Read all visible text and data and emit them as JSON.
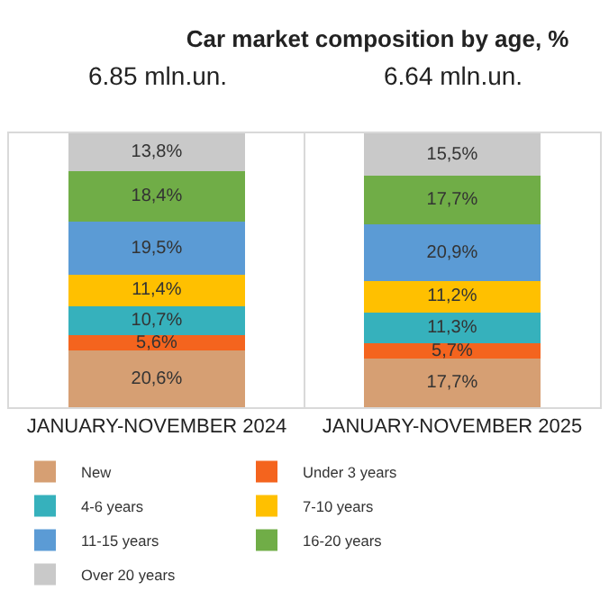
{
  "chart_data": {
    "type": "bar",
    "title": "Car market composition by age, %",
    "categories": [
      "JANUARY-NOVEMBER 2024",
      "JANUARY-NOVEMBER 2025"
    ],
    "stacked": true,
    "legend": "bottom",
    "grid": false,
    "annotations": [
      {
        "text": "6.85 mln.un.",
        "x": "JANUARY-NOVEMBER 2024",
        "y": 100
      },
      {
        "text": "6.64 mln.un.",
        "x": "JANUARY-NOVEMBER 2025",
        "y": 100
      }
    ],
    "series": [
      {
        "name": "New",
        "color": "#d69f73",
        "values": [
          20.6,
          17.7
        ],
        "value_labels": [
          "20,6%",
          "17,7%"
        ]
      },
      {
        "name": "Under 3 years",
        "color": "#f4641e",
        "values": [
          5.6,
          5.7
        ],
        "value_labels": [
          "5,6%",
          "5,7%"
        ]
      },
      {
        "name": "4-6 years",
        "color": "#36b1bc",
        "values": [
          10.7,
          11.3
        ],
        "value_labels": [
          "10,7%",
          "11,3%"
        ]
      },
      {
        "name": "7-10 years",
        "color": "#ffc000",
        "values": [
          11.4,
          11.2
        ],
        "value_labels": [
          "11,4%",
          "11,2%"
        ]
      },
      {
        "name": "11-15 years",
        "color": "#5b9bd5",
        "values": [
          19.5,
          20.9
        ],
        "value_labels": [
          "19,5%",
          "20,9%"
        ]
      },
      {
        "name": "16-20 years",
        "color": "#70ad47",
        "values": [
          18.4,
          17.7
        ],
        "value_labels": [
          "18,4%",
          "17,7%"
        ]
      },
      {
        "name": "Over 20 years",
        "color": "#c9c9c9",
        "values": [
          13.8,
          15.5
        ],
        "value_labels": [
          "13,8%",
          "15,5%"
        ]
      }
    ]
  }
}
